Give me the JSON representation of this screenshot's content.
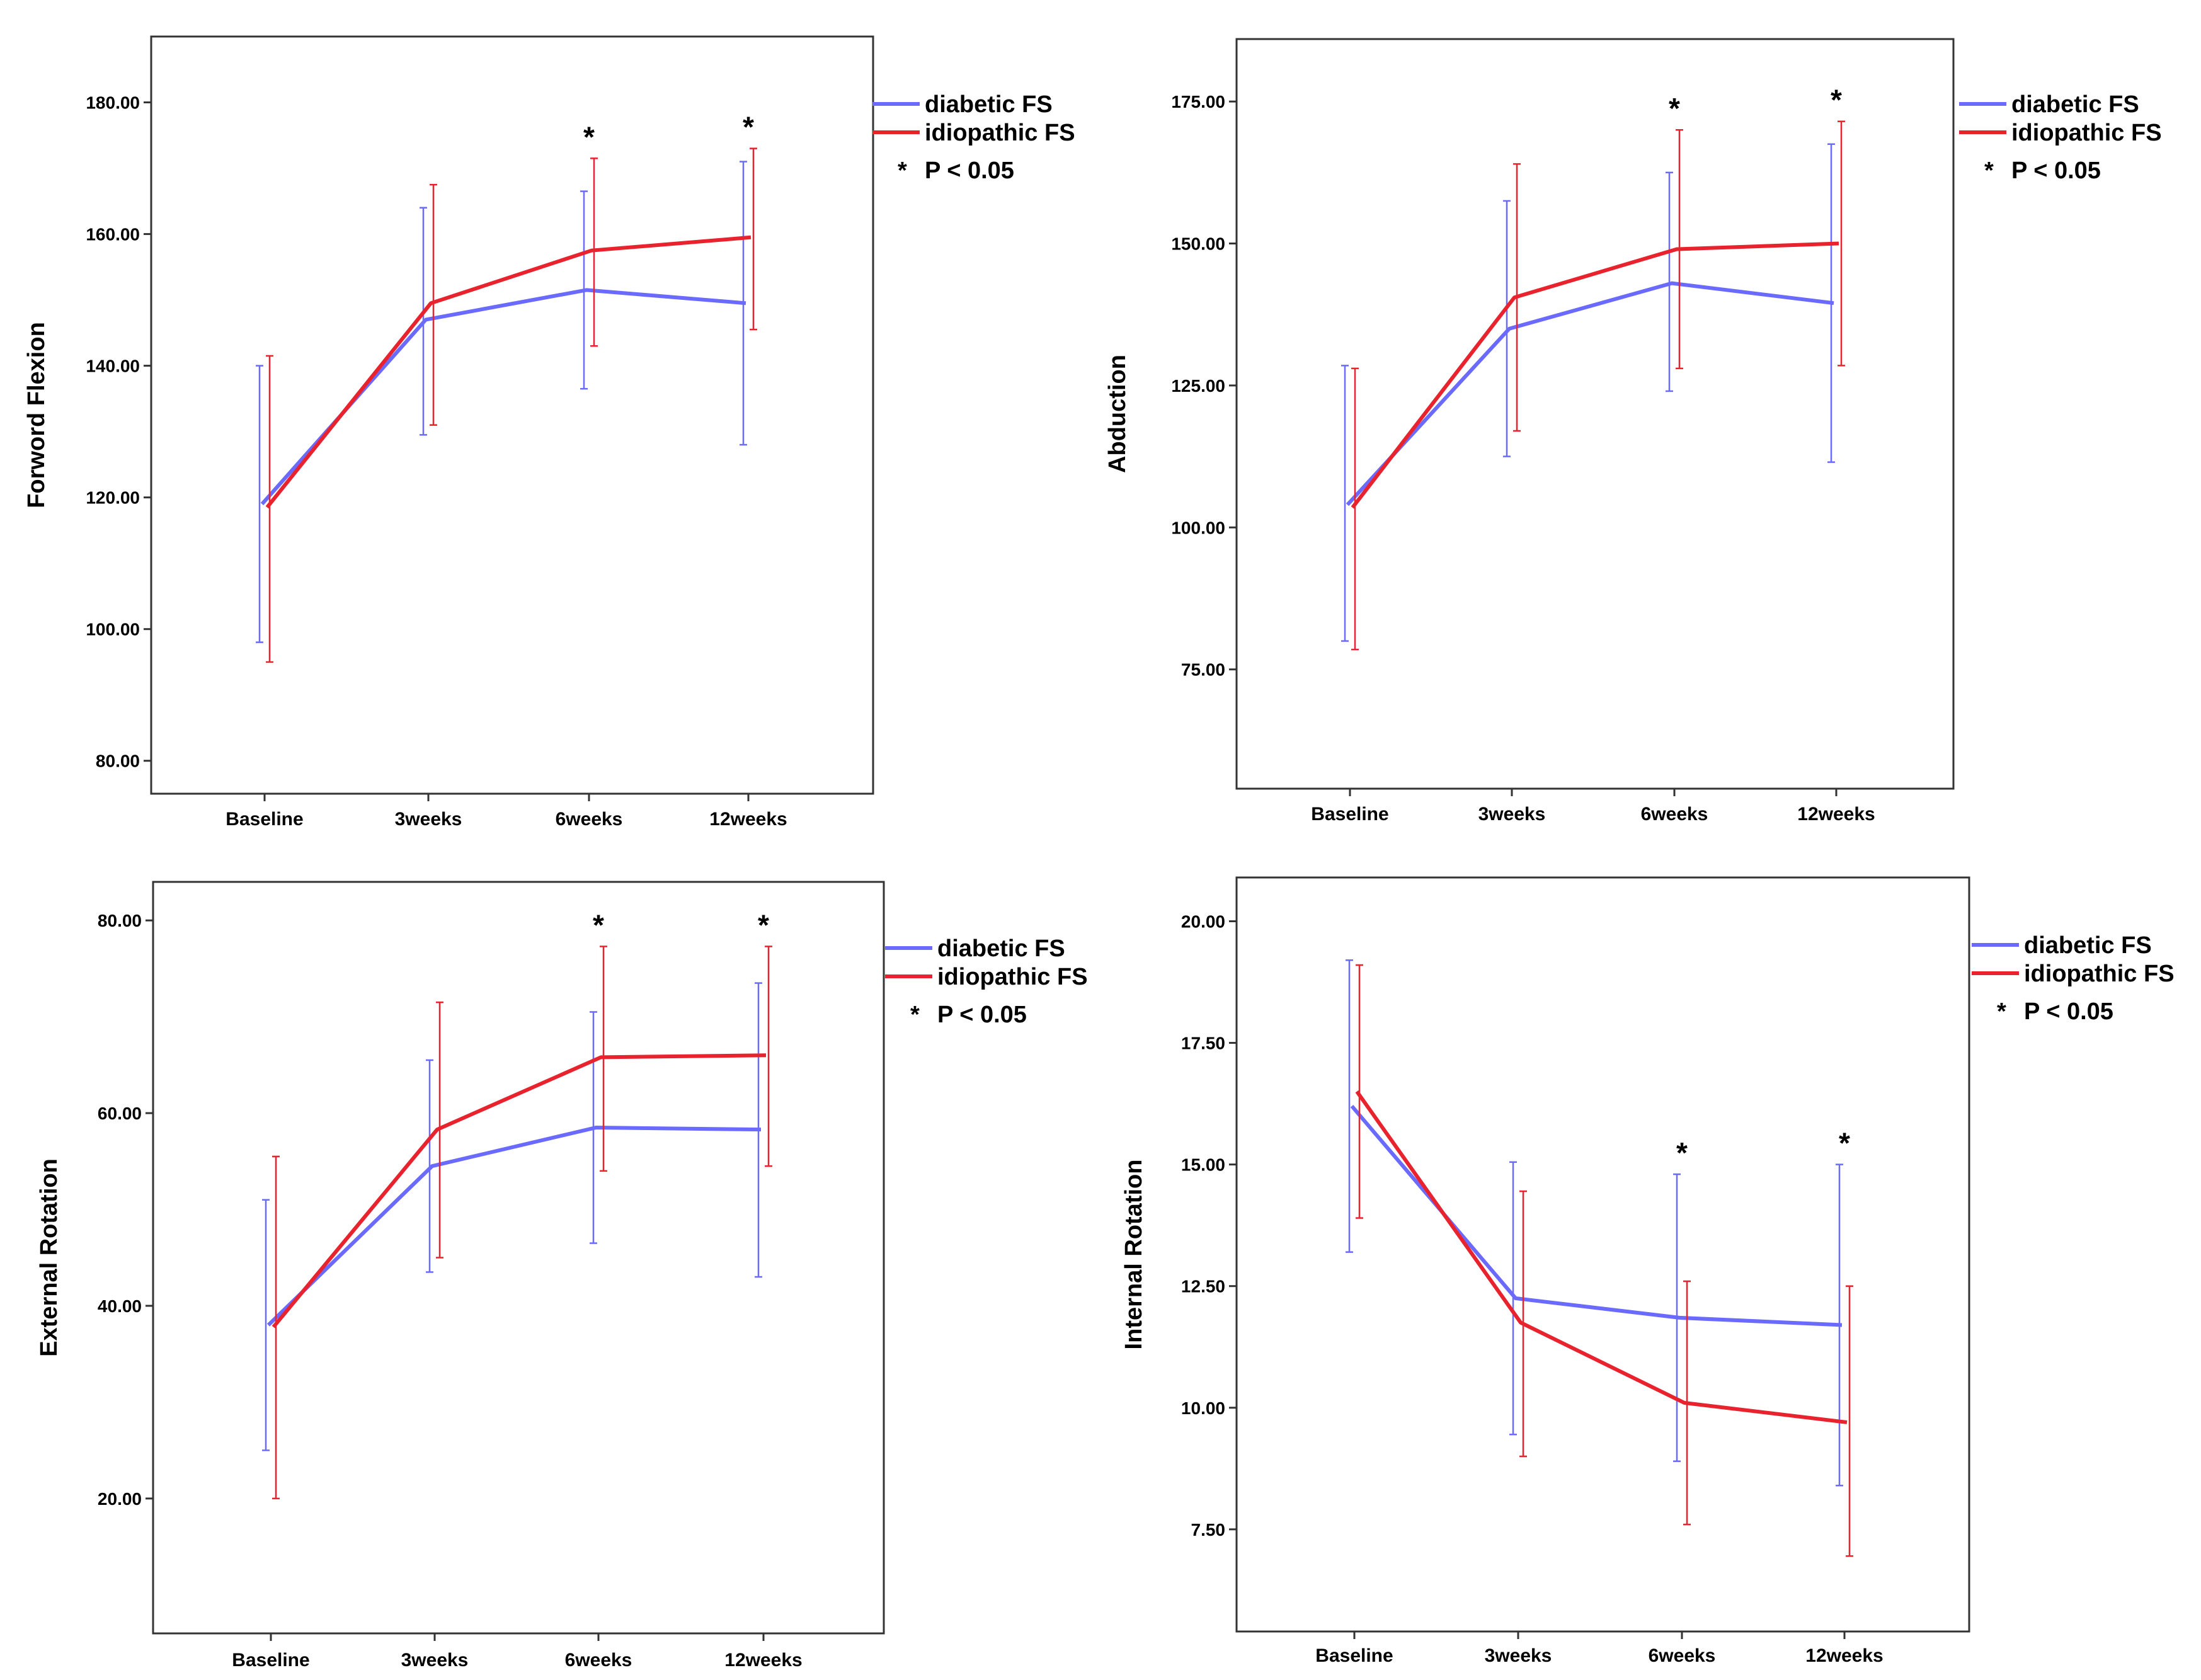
{
  "legend": {
    "diabetic": "diabetic FS",
    "idiopathic": "idiopathic FS",
    "note_star": "*",
    "note_text": "P < 0.05"
  },
  "colors": {
    "diabetic": "#6a6aff",
    "idiopathic": "#e8232e",
    "frame": "#333333"
  },
  "chart_data": [
    {
      "type": "line",
      "title": "",
      "xlabel": "",
      "ylabel": "Forword Flexion",
      "categories": [
        "Baseline",
        "3weeks",
        "6weeks",
        "12weeks"
      ],
      "ylim": [
        75,
        190
      ],
      "yticks": [
        80,
        100,
        120,
        140,
        160,
        180
      ],
      "tick_labels": [
        "80.00",
        "100.00",
        "120.00",
        "140.00",
        "160.00",
        "180.00"
      ],
      "series": [
        {
          "name": "diabetic FS",
          "values": [
            119.0,
            147.0,
            151.5,
            149.5
          ],
          "lower": [
            98.0,
            129.5,
            136.5,
            128.0
          ],
          "upper": [
            140.0,
            164.0,
            166.5,
            171.0
          ]
        },
        {
          "name": "idiopathic FS",
          "values": [
            118.5,
            149.5,
            157.5,
            159.5
          ],
          "lower": [
            95.0,
            131.0,
            143.0,
            145.5
          ],
          "upper": [
            141.5,
            167.5,
            171.5,
            173.0
          ]
        }
      ],
      "significant": [
        false,
        false,
        true,
        true
      ]
    },
    {
      "type": "line",
      "title": "",
      "xlabel": "",
      "ylabel": "Abduction",
      "categories": [
        "Baseline",
        "3weeks",
        "6weeks",
        "12weeks"
      ],
      "ylim": [
        54,
        186
      ],
      "yticks": [
        75,
        100,
        125,
        150,
        175
      ],
      "tick_labels": [
        "75.00",
        "100.00",
        "125.00",
        "150.00",
        "175.00"
      ],
      "series": [
        {
          "name": "diabetic FS",
          "values": [
            104.0,
            135.0,
            143.0,
            139.5
          ],
          "lower": [
            80.0,
            112.5,
            124.0,
            111.5
          ],
          "upper": [
            128.5,
            157.5,
            162.5,
            167.5
          ]
        },
        {
          "name": "idiopathic FS",
          "values": [
            103.5,
            140.5,
            149.0,
            150.0
          ],
          "lower": [
            78.5,
            117.0,
            128.0,
            128.5
          ],
          "upper": [
            128.0,
            164.0,
            170.0,
            171.5
          ]
        }
      ],
      "significant": [
        false,
        false,
        true,
        true
      ]
    },
    {
      "type": "line",
      "title": "",
      "xlabel": "",
      "ylabel": "External Rotation",
      "categories": [
        "Baseline",
        "3weeks",
        "6weeks",
        "12weeks"
      ],
      "ylim": [
        6,
        84
      ],
      "yticks": [
        20,
        40,
        60,
        80
      ],
      "tick_labels": [
        "20.00",
        "40.00",
        "60.00",
        "80.00"
      ],
      "series": [
        {
          "name": "diabetic FS",
          "values": [
            38.0,
            54.5,
            58.5,
            58.3
          ],
          "lower": [
            25.0,
            43.5,
            46.5,
            43.0
          ],
          "upper": [
            51.0,
            65.5,
            70.5,
            73.5
          ]
        },
        {
          "name": "idiopathic FS",
          "values": [
            37.8,
            58.3,
            65.8,
            66.0
          ],
          "lower": [
            20.0,
            45.0,
            54.0,
            54.5
          ],
          "upper": [
            55.5,
            71.5,
            77.3,
            77.3
          ]
        }
      ],
      "significant": [
        false,
        false,
        true,
        true
      ]
    },
    {
      "type": "line",
      "title": "",
      "xlabel": "",
      "ylabel": "Internal Rotation",
      "categories": [
        "Baseline",
        "3weeks",
        "6weeks",
        "12weeks"
      ],
      "ylim": [
        5.4,
        20.9
      ],
      "yticks": [
        7.5,
        10,
        12.5,
        15,
        17.5,
        20
      ],
      "tick_labels": [
        "7.50",
        "10.00",
        "12.50",
        "15.00",
        "17.50",
        "20.00"
      ],
      "series": [
        {
          "name": "diabetic FS",
          "values": [
            16.2,
            12.25,
            11.85,
            11.7
          ],
          "lower": [
            13.2,
            9.45,
            8.9,
            8.4
          ],
          "upper": [
            19.2,
            15.05,
            14.8,
            15.0
          ]
        },
        {
          "name": "idiopathic FS",
          "values": [
            16.5,
            11.75,
            10.1,
            9.7
          ],
          "lower": [
            13.9,
            9.0,
            7.6,
            6.95
          ],
          "upper": [
            19.1,
            14.45,
            12.6,
            12.5
          ]
        }
      ],
      "significant": [
        false,
        false,
        true,
        true
      ]
    }
  ]
}
